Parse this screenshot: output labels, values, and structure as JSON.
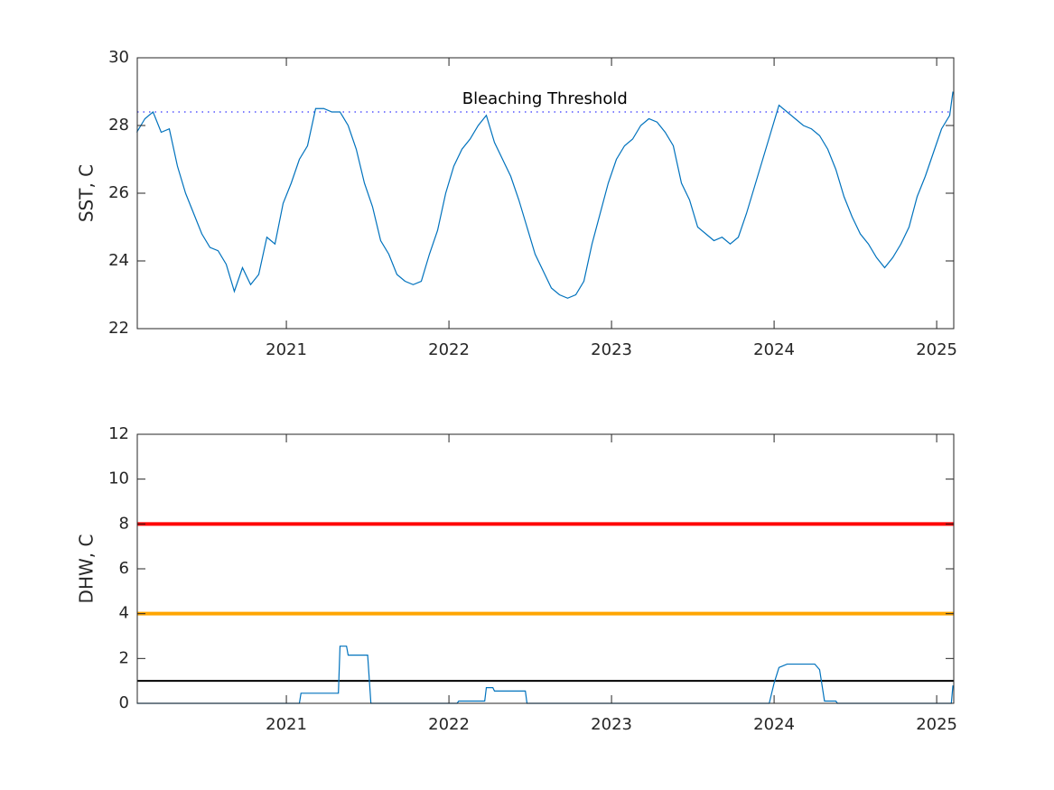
{
  "chart_data": [
    {
      "type": "line",
      "ylabel": "SST, C",
      "xlim": [
        2020.083,
        2025.105
      ],
      "xticks": [
        2021,
        2022,
        2023,
        2024,
        2025
      ],
      "ylim": [
        22,
        30
      ],
      "yticks": [
        22,
        24,
        26,
        28,
        30
      ],
      "series": [
        {
          "color": "#0072bd",
          "x": [
            2020.08,
            2020.13,
            2020.18,
            2020.23,
            2020.28,
            2020.33,
            2020.38,
            2020.43,
            2020.48,
            2020.53,
            2020.58,
            2020.63,
            2020.68,
            2020.73,
            2020.78,
            2020.83,
            2020.88,
            2020.93,
            2020.98,
            2021.03,
            2021.08,
            2021.13,
            2021.18,
            2021.23,
            2021.28,
            2021.33,
            2021.38,
            2021.43,
            2021.48,
            2021.53,
            2021.58,
            2021.63,
            2021.68,
            2021.73,
            2021.78,
            2021.83,
            2021.88,
            2021.93,
            2021.98,
            2022.03,
            2022.08,
            2022.13,
            2022.18,
            2022.23,
            2022.28,
            2022.33,
            2022.38,
            2022.43,
            2022.48,
            2022.53,
            2022.58,
            2022.63,
            2022.68,
            2022.73,
            2022.78,
            2022.83,
            2022.88,
            2022.93,
            2022.98,
            2023.03,
            2023.08,
            2023.13,
            2023.18,
            2023.23,
            2023.28,
            2023.33,
            2023.38,
            2023.43,
            2023.48,
            2023.53,
            2023.58,
            2023.63,
            2023.68,
            2023.73,
            2023.78,
            2023.83,
            2023.88,
            2023.93,
            2023.98,
            2024.03,
            2024.08,
            2024.13,
            2024.18,
            2024.23,
            2024.28,
            2024.33,
            2024.38,
            2024.43,
            2024.48,
            2024.53,
            2024.58,
            2024.63,
            2024.68,
            2024.73,
            2024.78,
            2024.83,
            2024.88,
            2024.93,
            2024.98,
            2025.03,
            2025.08,
            2025.1
          ],
          "values": [
            27.8,
            28.2,
            28.4,
            27.8,
            27.9,
            26.8,
            26.0,
            25.4,
            24.8,
            24.4,
            24.3,
            23.9,
            23.1,
            23.8,
            23.3,
            23.6,
            24.7,
            24.5,
            25.7,
            26.3,
            27.0,
            27.4,
            28.5,
            28.5,
            28.4,
            28.4,
            28.0,
            27.3,
            26.3,
            25.6,
            24.6,
            24.2,
            23.6,
            23.4,
            23.3,
            23.4,
            24.2,
            24.9,
            26.0,
            26.8,
            27.3,
            27.6,
            28.0,
            28.3,
            27.5,
            27.0,
            26.5,
            25.8,
            25.0,
            24.2,
            23.7,
            23.2,
            23.0,
            22.9,
            23.0,
            23.4,
            24.5,
            25.4,
            26.3,
            27.0,
            27.4,
            27.6,
            28.0,
            28.2,
            28.1,
            27.8,
            27.4,
            26.3,
            25.8,
            25.0,
            24.8,
            24.6,
            24.7,
            24.5,
            24.7,
            25.4,
            26.2,
            27.0,
            27.8,
            28.6,
            28.4,
            28.2,
            28.0,
            27.9,
            27.7,
            27.3,
            26.7,
            25.9,
            25.3,
            24.8,
            24.5,
            24.1,
            23.8,
            24.1,
            24.5,
            25.0,
            25.9,
            26.5,
            27.2,
            27.9,
            28.3,
            29.0
          ]
        }
      ],
      "reference_lines": [
        {
          "value": 28.4,
          "color": "#0000ff",
          "style": "dotted",
          "label": "Bleaching Threshold",
          "label_x": 2022.59
        }
      ]
    },
    {
      "type": "line",
      "ylabel": "DHW, C",
      "xlim": [
        2020.083,
        2025.105
      ],
      "xticks": [
        2021,
        2022,
        2023,
        2024,
        2025
      ],
      "ylim": [
        0,
        12
      ],
      "yticks": [
        0,
        2,
        4,
        6,
        8,
        10,
        12
      ],
      "reference_lines": [
        {
          "value": 8,
          "color": "#ff0000",
          "style": "solid",
          "width": 4
        },
        {
          "value": 4,
          "color": "#ffa500",
          "style": "solid",
          "width": 4
        },
        {
          "value": 1,
          "color": "#000000",
          "style": "solid",
          "width": 2
        }
      ],
      "series": [
        {
          "color": "#0072bd",
          "x": [
            2020.08,
            2021.08,
            2021.09,
            2021.32,
            2021.33,
            2021.37,
            2021.38,
            2021.5,
            2021.52,
            2022.05,
            2022.06,
            2022.22,
            2022.23,
            2022.27,
            2022.28,
            2022.47,
            2022.48,
            2023.97,
            2024.0,
            2024.03,
            2024.08,
            2024.25,
            2024.28,
            2024.31,
            2024.32,
            2024.38,
            2024.39,
            2025.09,
            2025.1
          ],
          "values": [
            0,
            0,
            0.45,
            0.45,
            2.55,
            2.55,
            2.15,
            2.15,
            0,
            0,
            0.1,
            0.1,
            0.7,
            0.7,
            0.55,
            0.55,
            0,
            0,
            0.9,
            1.6,
            1.75,
            1.75,
            1.5,
            0.1,
            0.1,
            0.1,
            0,
            0,
            0.8
          ]
        }
      ]
    }
  ]
}
